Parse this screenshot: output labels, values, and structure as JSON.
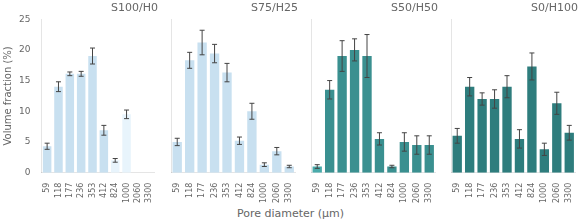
{
  "chart_data": [
    {
      "type": "bar",
      "title": "S100/H0",
      "ylabel": "Volume fraction (%)",
      "xlabel": "Pore diameter (μm)",
      "categories": [
        "59",
        "118",
        "177",
        "236",
        "353",
        "412",
        "824",
        "1000",
        "2060",
        "3300"
      ],
      "values": [
        4.3,
        14.0,
        16.1,
        16.1,
        19.0,
        6.9,
        2.0,
        9.5,
        0.0,
        0.0
      ],
      "errors": [
        0.5,
        0.8,
        0.3,
        0.4,
        1.3,
        0.8,
        0.3,
        0.7,
        null,
        null
      ],
      "colors": [
        "#c8e0f0",
        "#c8e0f0",
        "#c8e0f0",
        "#c8e0f0",
        "#c8e0f0",
        "#c8e0f0",
        "#e8f4fc",
        "#e8f4fc",
        "#e8f4fc",
        "#e8f4fc"
      ],
      "ylim": [
        0,
        25
      ],
      "yticks": [
        0,
        5,
        10,
        15,
        20,
        25
      ],
      "grid": false
    },
    {
      "type": "bar",
      "title": "S75/H25",
      "categories": [
        "59",
        "118",
        "177",
        "236",
        "353",
        "412",
        "824",
        "1000",
        "2060",
        "3300"
      ],
      "values": [
        5.0,
        18.3,
        21.2,
        19.4,
        16.3,
        5.2,
        10.0,
        1.3,
        3.5,
        1.0
      ],
      "errors": [
        0.6,
        1.3,
        2.0,
        1.5,
        1.5,
        0.6,
        1.3,
        0.3,
        0.6,
        0.2
      ],
      "color": "#c8e0f0",
      "ylim": [
        0,
        25
      ],
      "yticks": [
        0,
        5,
        10,
        15,
        20,
        25
      ],
      "grid": false,
      "tick_labels": "x"
    },
    {
      "type": "bar",
      "title": "S50/H50",
      "categories": [
        "59",
        "118",
        "177",
        "236",
        "353",
        "412",
        "824",
        "1000",
        "2060",
        "3300"
      ],
      "values": [
        1.0,
        13.5,
        19.0,
        20.0,
        19.0,
        5.5,
        1.0,
        5.0,
        4.5,
        4.5
      ],
      "errors": [
        0.3,
        1.5,
        2.5,
        1.8,
        3.5,
        1.0,
        0.2,
        1.5,
        1.5,
        1.5
      ],
      "colors": [
        "#4aabab",
        "#3a9090",
        "#3a9090",
        "#3a9090",
        "#3a9090",
        "#3a9090",
        "#3a9090",
        "#3a9090",
        "#3a9090",
        "#3a9090"
      ],
      "ylim": [
        0,
        25
      ],
      "yticks": [
        0,
        5,
        10,
        15,
        20,
        25
      ],
      "grid": false,
      "tick_labels": "x"
    },
    {
      "type": "bar",
      "title": "S0/H100",
      "categories": [
        "59",
        "118",
        "177",
        "236",
        "353",
        "412",
        "824",
        "1000",
        "2060",
        "3300"
      ],
      "values": [
        6.0,
        14.0,
        12.0,
        12.0,
        14.0,
        5.5,
        17.3,
        3.8,
        11.3,
        6.5
      ],
      "errors": [
        1.2,
        1.5,
        1.0,
        1.5,
        1.8,
        1.5,
        2.2,
        1.0,
        1.8,
        1.2
      ],
      "color": "#2e7d7d",
      "ylim": [
        0,
        25
      ],
      "yticks": [
        0,
        5,
        10,
        15,
        20,
        25
      ],
      "grid": false,
      "tick_labels": "x"
    }
  ]
}
